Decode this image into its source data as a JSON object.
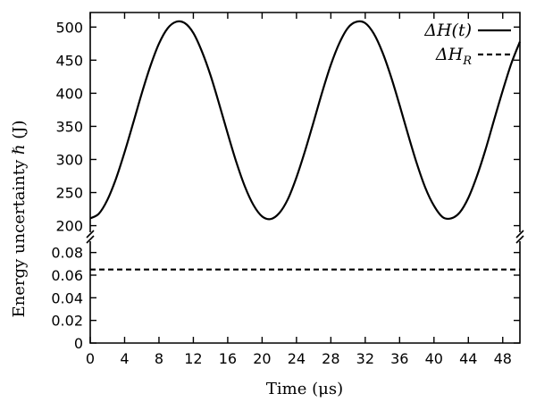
{
  "chart_data": {
    "type": "line",
    "xlabel": "Time (μs)",
    "ylabel": "Energy uncertainty ℏ (J)",
    "xlim": [
      0,
      50
    ],
    "x_ticks": [
      "0",
      "4",
      "8",
      "12",
      "16",
      "20",
      "24",
      "28",
      "32",
      "36",
      "40",
      "44",
      "48"
    ],
    "broken_y_axis": true,
    "upper_panel": {
      "ylim": [
        190,
        522
      ],
      "y_ticks": [
        "200",
        "250",
        "300",
        "350",
        "400",
        "450",
        "500"
      ]
    },
    "lower_panel": {
      "ylim": [
        0,
        0.09
      ],
      "y_ticks": [
        "0",
        "0.02",
        "0.04",
        "0.06",
        "0.08"
      ]
    },
    "legend_position": "top-right",
    "grid": false,
    "series": [
      {
        "name": "ΔH(t)",
        "legend_text": "ΔH(t)",
        "style": "solid",
        "panel": "upper",
        "x": [
          0,
          1,
          2,
          3,
          4,
          5,
          6,
          7,
          8,
          9,
          10,
          11,
          12,
          13,
          14,
          15,
          16,
          17,
          18,
          19,
          20,
          21,
          22,
          23,
          24,
          25,
          26,
          27,
          28,
          29,
          30,
          31,
          32,
          33,
          34,
          35,
          36,
          37,
          38,
          39,
          40,
          41,
          42,
          43,
          44,
          45,
          46,
          47,
          48,
          49,
          50
        ],
        "values": [
          211,
          218,
          239,
          271,
          311,
          355,
          400,
          441,
          475,
          498,
          508,
          506,
          491,
          463,
          427,
          384,
          339,
          296,
          259,
          231,
          214,
          210,
          219,
          240,
          273,
          313,
          357,
          402,
          443,
          476,
          499,
          508,
          506,
          490,
          462,
          425,
          382,
          337,
          294,
          257,
          230,
          213,
          211,
          220,
          242,
          275,
          315,
          360,
          404,
          445,
          478
        ]
      },
      {
        "name": "ΔH_R",
        "legend_text": "ΔH",
        "legend_subscript": "R",
        "style": "dashed",
        "panel": "lower",
        "x": [
          0,
          50
        ],
        "values": [
          0.065,
          0.065
        ]
      }
    ]
  }
}
